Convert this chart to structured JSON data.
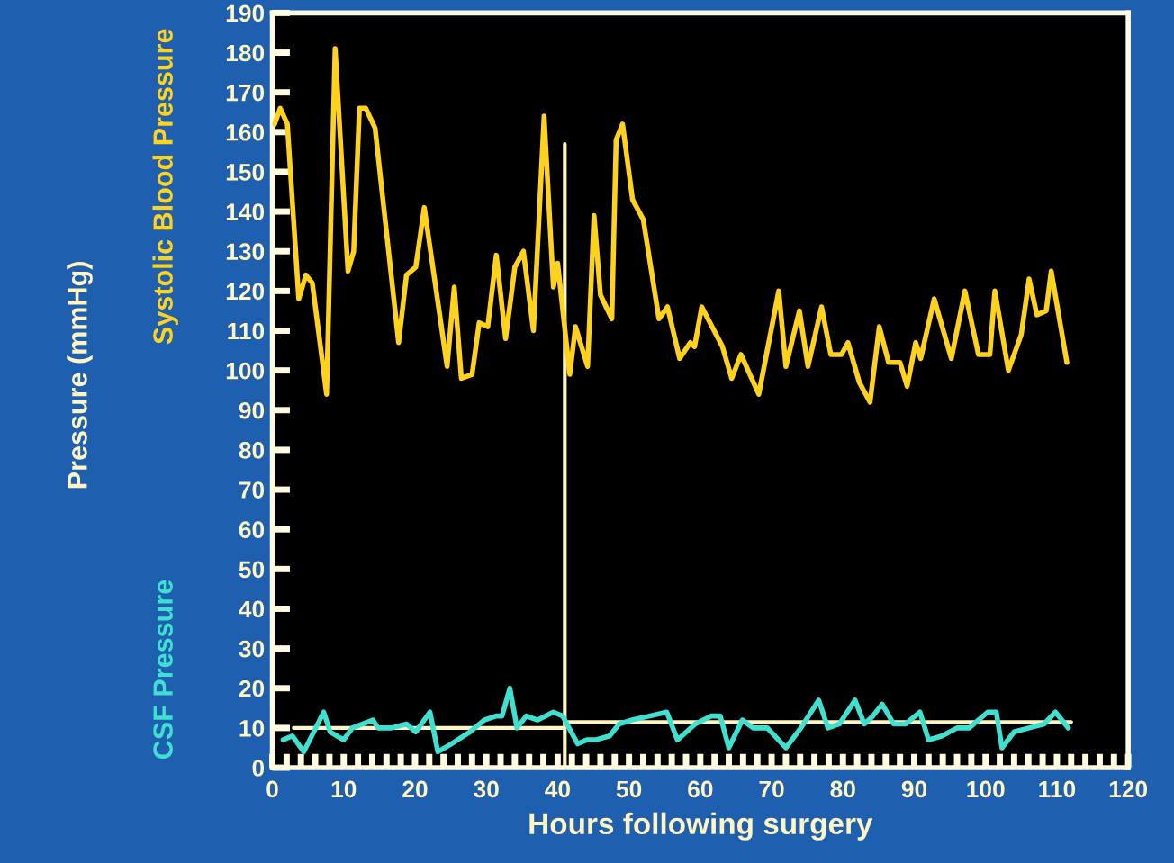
{
  "chart_data": {
    "type": "line",
    "xlabel": "Hours following surgery",
    "ylabel": "Pressure (mmHg)",
    "xlim": [
      0,
      120
    ],
    "ylim": [
      0,
      190
    ],
    "xticks": [
      0,
      {
        "value": 2,
        "label": null
      },
      {
        "value": 4,
        "label": null
      },
      {
        "value": 6,
        "label": null
      },
      {
        "value": 8,
        "label": null
      },
      10,
      {
        "value": 12,
        "label": null
      },
      {
        "value": 14,
        "label": null
      },
      {
        "value": 16,
        "label": null
      },
      {
        "value": 18,
        "label": null
      },
      20,
      {
        "value": 22,
        "label": null
      },
      {
        "value": 24,
        "label": null
      },
      {
        "value": 26,
        "label": null
      },
      {
        "value": 28,
        "label": null
      },
      30,
      {
        "value": 32,
        "label": null
      },
      {
        "value": 34,
        "label": null
      },
      {
        "value": 36,
        "label": null
      },
      {
        "value": 38,
        "label": null
      },
      40,
      {
        "value": 42,
        "label": null
      },
      {
        "value": 44,
        "label": null
      },
      {
        "value": 46,
        "label": null
      },
      {
        "value": 48,
        "label": null
      },
      50,
      {
        "value": 52,
        "label": null
      },
      {
        "value": 54,
        "label": null
      },
      {
        "value": 56,
        "label": null
      },
      {
        "value": 58,
        "label": null
      },
      60,
      {
        "value": 62,
        "label": null
      },
      {
        "value": 64,
        "label": null
      },
      {
        "value": 66,
        "label": null
      },
      {
        "value": 68,
        "label": null
      },
      70,
      {
        "value": 72,
        "label": null
      },
      {
        "value": 74,
        "label": null
      },
      {
        "value": 76,
        "label": null
      },
      {
        "value": 78,
        "label": null
      },
      80,
      {
        "value": 82,
        "label": null
      },
      {
        "value": 84,
        "label": null
      },
      {
        "value": 86,
        "label": null
      },
      {
        "value": 88,
        "label": null
      },
      90,
      {
        "value": 92,
        "label": null
      },
      {
        "value": 94,
        "label": null
      },
      {
        "value": 96,
        "label": null
      },
      {
        "value": 98,
        "label": null
      },
      100,
      {
        "value": 102,
        "label": null
      },
      {
        "value": 104,
        "label": null
      },
      {
        "value": 106,
        "label": null
      },
      {
        "value": 108,
        "label": null
      },
      110,
      {
        "value": 112,
        "label": null
      },
      {
        "value": 114,
        "label": null
      },
      {
        "value": 116,
        "label": null
      },
      {
        "value": 118,
        "label": null
      },
      120
    ],
    "yticks": [
      0,
      10,
      20,
      30,
      40,
      50,
      60,
      70,
      80,
      90,
      100,
      110,
      120,
      130,
      140,
      150,
      160,
      170,
      180,
      190
    ],
    "grid": false,
    "legend": false,
    "series": [
      {
        "name": "Systolic Blood Pressure",
        "color": "#ffd21e",
        "x": [
          0.3,
          1.1,
          2.1,
          3.7,
          4.7,
          5.6,
          7.6,
          8.8,
          10.6,
          11.4,
          12.2,
          13.1,
          14.4,
          17.7,
          18.8,
          20.1,
          21.3,
          24.5,
          25.5,
          26.5,
          28,
          29,
          30.2,
          31.4,
          32.7,
          34,
          35.2,
          36.6,
          38.1,
          39.4,
          40,
          41.7,
          42.5,
          44.2,
          45.1,
          46,
          47.6,
          48.2,
          49.1,
          50.5,
          52,
          54.2,
          55.4,
          57.1,
          58.6,
          59.2,
          60.2,
          63.1,
          64.4,
          65.7,
          68.2,
          71,
          72,
          73.9,
          75.1,
          77,
          78.3,
          79.8,
          80.7,
          82.3,
          83.8,
          85.1,
          86.4,
          88,
          89,
          90.2,
          90.9,
          92.8,
          95.2,
          97.1,
          99,
          100.6,
          101.3,
          103.2,
          105,
          106.1,
          107.2,
          108.5,
          109.2,
          111.4
        ],
        "values": [
          162,
          166,
          162,
          118,
          124,
          122,
          94,
          181,
          125,
          130,
          166,
          166,
          161,
          107,
          124,
          126,
          141,
          101,
          121,
          98,
          99,
          112,
          111,
          129,
          108,
          126,
          130,
          110,
          164,
          121,
          127,
          99,
          111,
          101,
          139,
          119,
          113,
          158,
          162,
          143,
          138,
          113,
          116,
          103,
          107,
          106,
          116,
          106,
          98,
          104,
          94,
          120,
          101,
          115,
          101,
          116,
          104,
          104,
          107,
          97,
          92,
          111,
          102,
          102,
          96,
          107,
          103,
          118,
          103,
          120,
          104,
          104,
          120,
          100,
          109,
          123,
          114,
          115,
          125,
          102
        ]
      },
      {
        "name": "CSF Pressure",
        "color": "#40e0d0",
        "x": [
          1.5,
          2.8,
          4.4,
          7.2,
          8.1,
          10,
          11.2,
          14.1,
          14.8,
          16.7,
          18.8,
          20.1,
          22.1,
          23.2,
          25.1,
          27.7,
          29.7,
          31.4,
          32.2,
          33.3,
          34.3,
          35.6,
          37.2,
          39.4,
          40.7,
          42.8,
          44.1,
          45.3,
          47.3,
          48.6,
          50.4,
          52.9,
          55.3,
          56.8,
          59.3,
          61.5,
          62.8,
          64,
          65.9,
          67.4,
          69.4,
          72,
          74.1,
          76.6,
          77.9,
          79.5,
          81.7,
          83,
          84.2,
          85.5,
          87.1,
          88.8,
          90.8,
          92,
          93.9,
          96,
          97.7,
          100.3,
          101.5,
          102.3,
          104,
          106.1,
          108.2,
          109.8,
          111.6
        ],
        "values": [
          7,
          8,
          4,
          14,
          9,
          7,
          10,
          12,
          10,
          10,
          11,
          9,
          14,
          4,
          6,
          9,
          12,
          13,
          13,
          20,
          10,
          13,
          12,
          14,
          13,
          6,
          7,
          7,
          8,
          11,
          12,
          13,
          14,
          7,
          11,
          13,
          13,
          5,
          12,
          10,
          10,
          5,
          10,
          17,
          10,
          11,
          17,
          11,
          13,
          16,
          11,
          11,
          14,
          7,
          8,
          10,
          10,
          14,
          14,
          5,
          9,
          10,
          11,
          14,
          10
        ]
      },
      {
        "color": "#fff5c0",
        "x": [
          3,
          41
        ],
        "values": [
          10,
          10
        ]
      },
      {
        "color": "#fff5c0",
        "x": [
          41,
          112
        ],
        "values": [
          11.5,
          11.5
        ]
      },
      {
        "color": "#fff5c0",
        "x": [
          41,
          41
        ],
        "values": [
          0,
          157
        ]
      }
    ]
  }
}
